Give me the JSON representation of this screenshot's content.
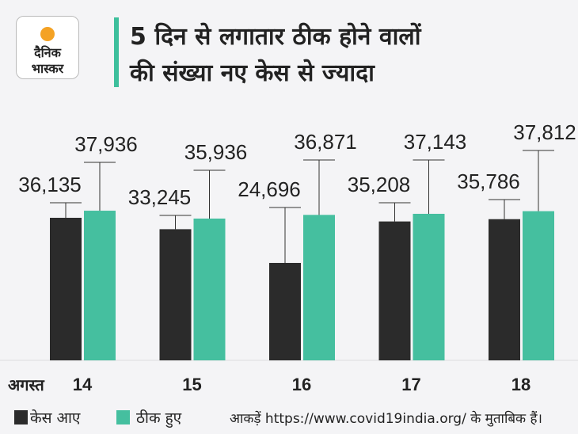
{
  "logo": {
    "line1": "दैनिक",
    "line2": "भास्कर"
  },
  "title": {
    "line1": "5 दिन से लगातार ठीक होने वालों",
    "line2": "की संख्या नए केस से ज्यादा"
  },
  "chart_data": {
    "type": "bar",
    "xlabel": "अगस्त",
    "categories": [
      "14",
      "15",
      "16",
      "17",
      "18"
    ],
    "series": [
      {
        "name": "केस आए",
        "color": "#2b2b2b",
        "values": [
          36135,
          33245,
          24696,
          35208,
          35786
        ],
        "labels": [
          "36,135",
          "33,245",
          "24,696",
          "35,208",
          "35,786"
        ]
      },
      {
        "name": "ठीक हुए",
        "color": "#45bf9f",
        "values": [
          37936,
          35936,
          36871,
          37143,
          37812
        ],
        "labels": [
          "37,936",
          "35,936",
          "36,871",
          "37,143",
          "37,812"
        ]
      }
    ],
    "ylim": [
      0,
      40000
    ],
    "legend": "bottom-left"
  },
  "source": "आकड़ें https://www.covid19india.org/ के मुताबिक हैं।"
}
